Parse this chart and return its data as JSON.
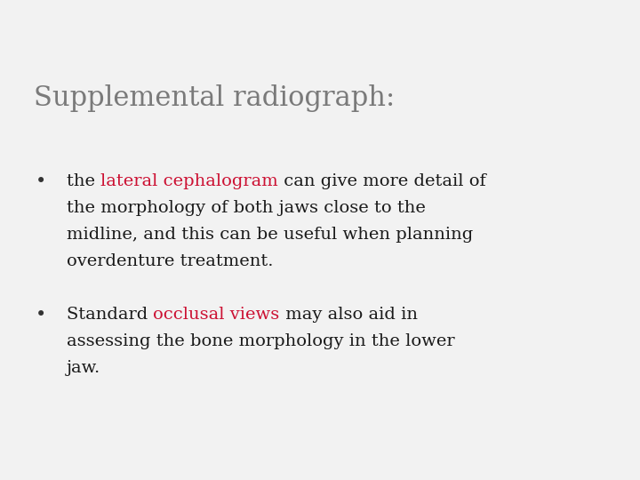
{
  "background_color": "#f2f2f2",
  "header_dark_color": "#6e6e6e",
  "header_pink_color": "#e8175d",
  "header_light_pink": "#f08098",
  "header_white_line": "#ffffff",
  "title": "Supplemental radiograph:",
  "title_color": "#7a7a7a",
  "title_fontsize": 22,
  "bullet_color": "#333333",
  "body_fontsize": 14,
  "red_color": "#cc1133",
  "black_color": "#1a1a1a",
  "font_family": "DejaVu Serif",
  "bullet1_line1_pre": "the ",
  "bullet1_line1_red": "lateral cephalogram",
  "bullet1_line1_post": " can give more detail of",
  "bullet1_line2": "the morphology of both jaws close to the",
  "bullet1_line3": "midline, and this can be useful when planning",
  "bullet1_line4": "overdenture treatment.",
  "bullet2_line1_pre": "Standard ",
  "bullet2_line1_red": "occlusal views",
  "bullet2_line1_post": " may also aid in",
  "bullet2_line2": "assessing the bone morphology in the lower",
  "bullet2_line3": "jaw."
}
